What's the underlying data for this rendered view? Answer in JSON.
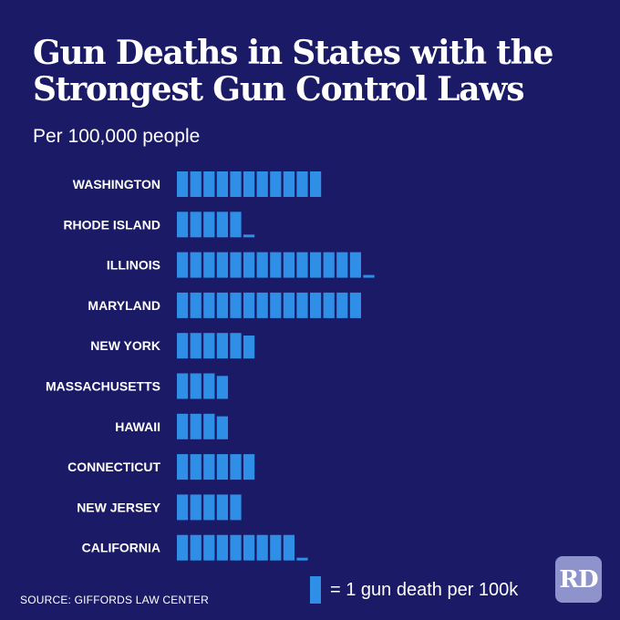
{
  "header": {
    "title": "Gun Deaths in States with the Strongest Gun Control Laws",
    "subtitle": "Per 100,000 people"
  },
  "legend": {
    "text": "= 1 gun death per 100k",
    "color": "#2f8fe6"
  },
  "source": "SOURCE: GIFFORDS LAW CENTER",
  "logo": "RD",
  "colors": {
    "background": "#1b1a66",
    "bar": "#2f8fe6",
    "text": "#ffffff"
  },
  "chart_data": {
    "type": "bar",
    "orientation": "horizontal",
    "unit": "gun deaths per 100,000 people (one block = 1)",
    "categories": [
      "WASHINGTON",
      "RHODE ISLAND",
      "ILLINOIS",
      "MARYLAND",
      "NEW YORK",
      "MASSACHUSETTS",
      "HAWAII",
      "CONNECTICUT",
      "NEW JERSEY",
      "CALIFORNIA"
    ],
    "values": [
      11,
      5.1,
      14.1,
      14,
      5.9,
      3.9,
      3.9,
      6,
      5,
      9.1
    ]
  }
}
